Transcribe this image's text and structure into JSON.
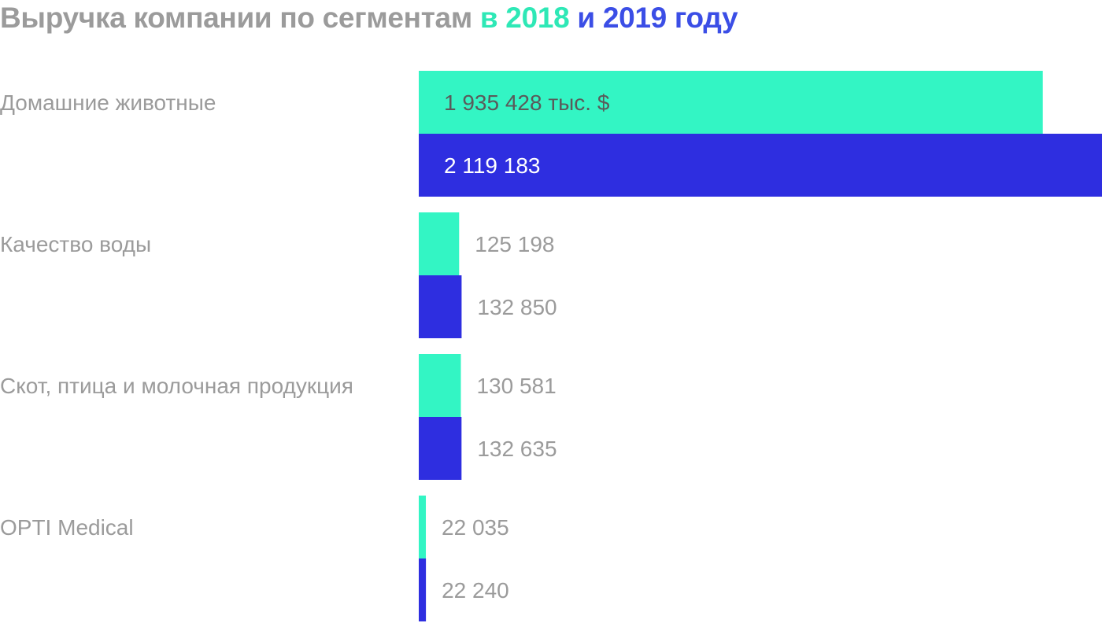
{
  "chart_data": {
    "type": "bar",
    "orientation": "horizontal",
    "title": {
      "main": "Выручка компании по сегментам",
      "part_2018": "в 2018",
      "conj": "и",
      "part_2019": "2019 году"
    },
    "categories": [
      "Домашние животные",
      "Качество воды",
      "Скот, птица и молочная продукция",
      "OPTI Medical"
    ],
    "series": [
      {
        "year": "2018",
        "color": "#33f5c4",
        "values": [
          1935428,
          125198,
          130581,
          22035
        ],
        "value_labels": [
          "1 935 428 тыс. $",
          "125 198",
          "130 581",
          "22 035"
        ]
      },
      {
        "year": "2019",
        "color": "#2e2ee0",
        "values": [
          2119183,
          132850,
          132635,
          22240
        ],
        "value_labels": [
          "2 119 183",
          "132 850",
          "132 635",
          "22 240"
        ]
      }
    ],
    "xlim": [
      0,
      2119183
    ],
    "grid": false,
    "legend": "none",
    "colors": {
      "title": "#9b9b9b",
      "title_2018": "#2ee8b6",
      "title_2019": "#3b4ee6",
      "category_label": "#9b9b9b",
      "value_label_outside": "#9b9b9b",
      "value_label_on_2018_bar": "#5a5a5a",
      "value_label_on_2019_bar": "#ffffff"
    }
  }
}
